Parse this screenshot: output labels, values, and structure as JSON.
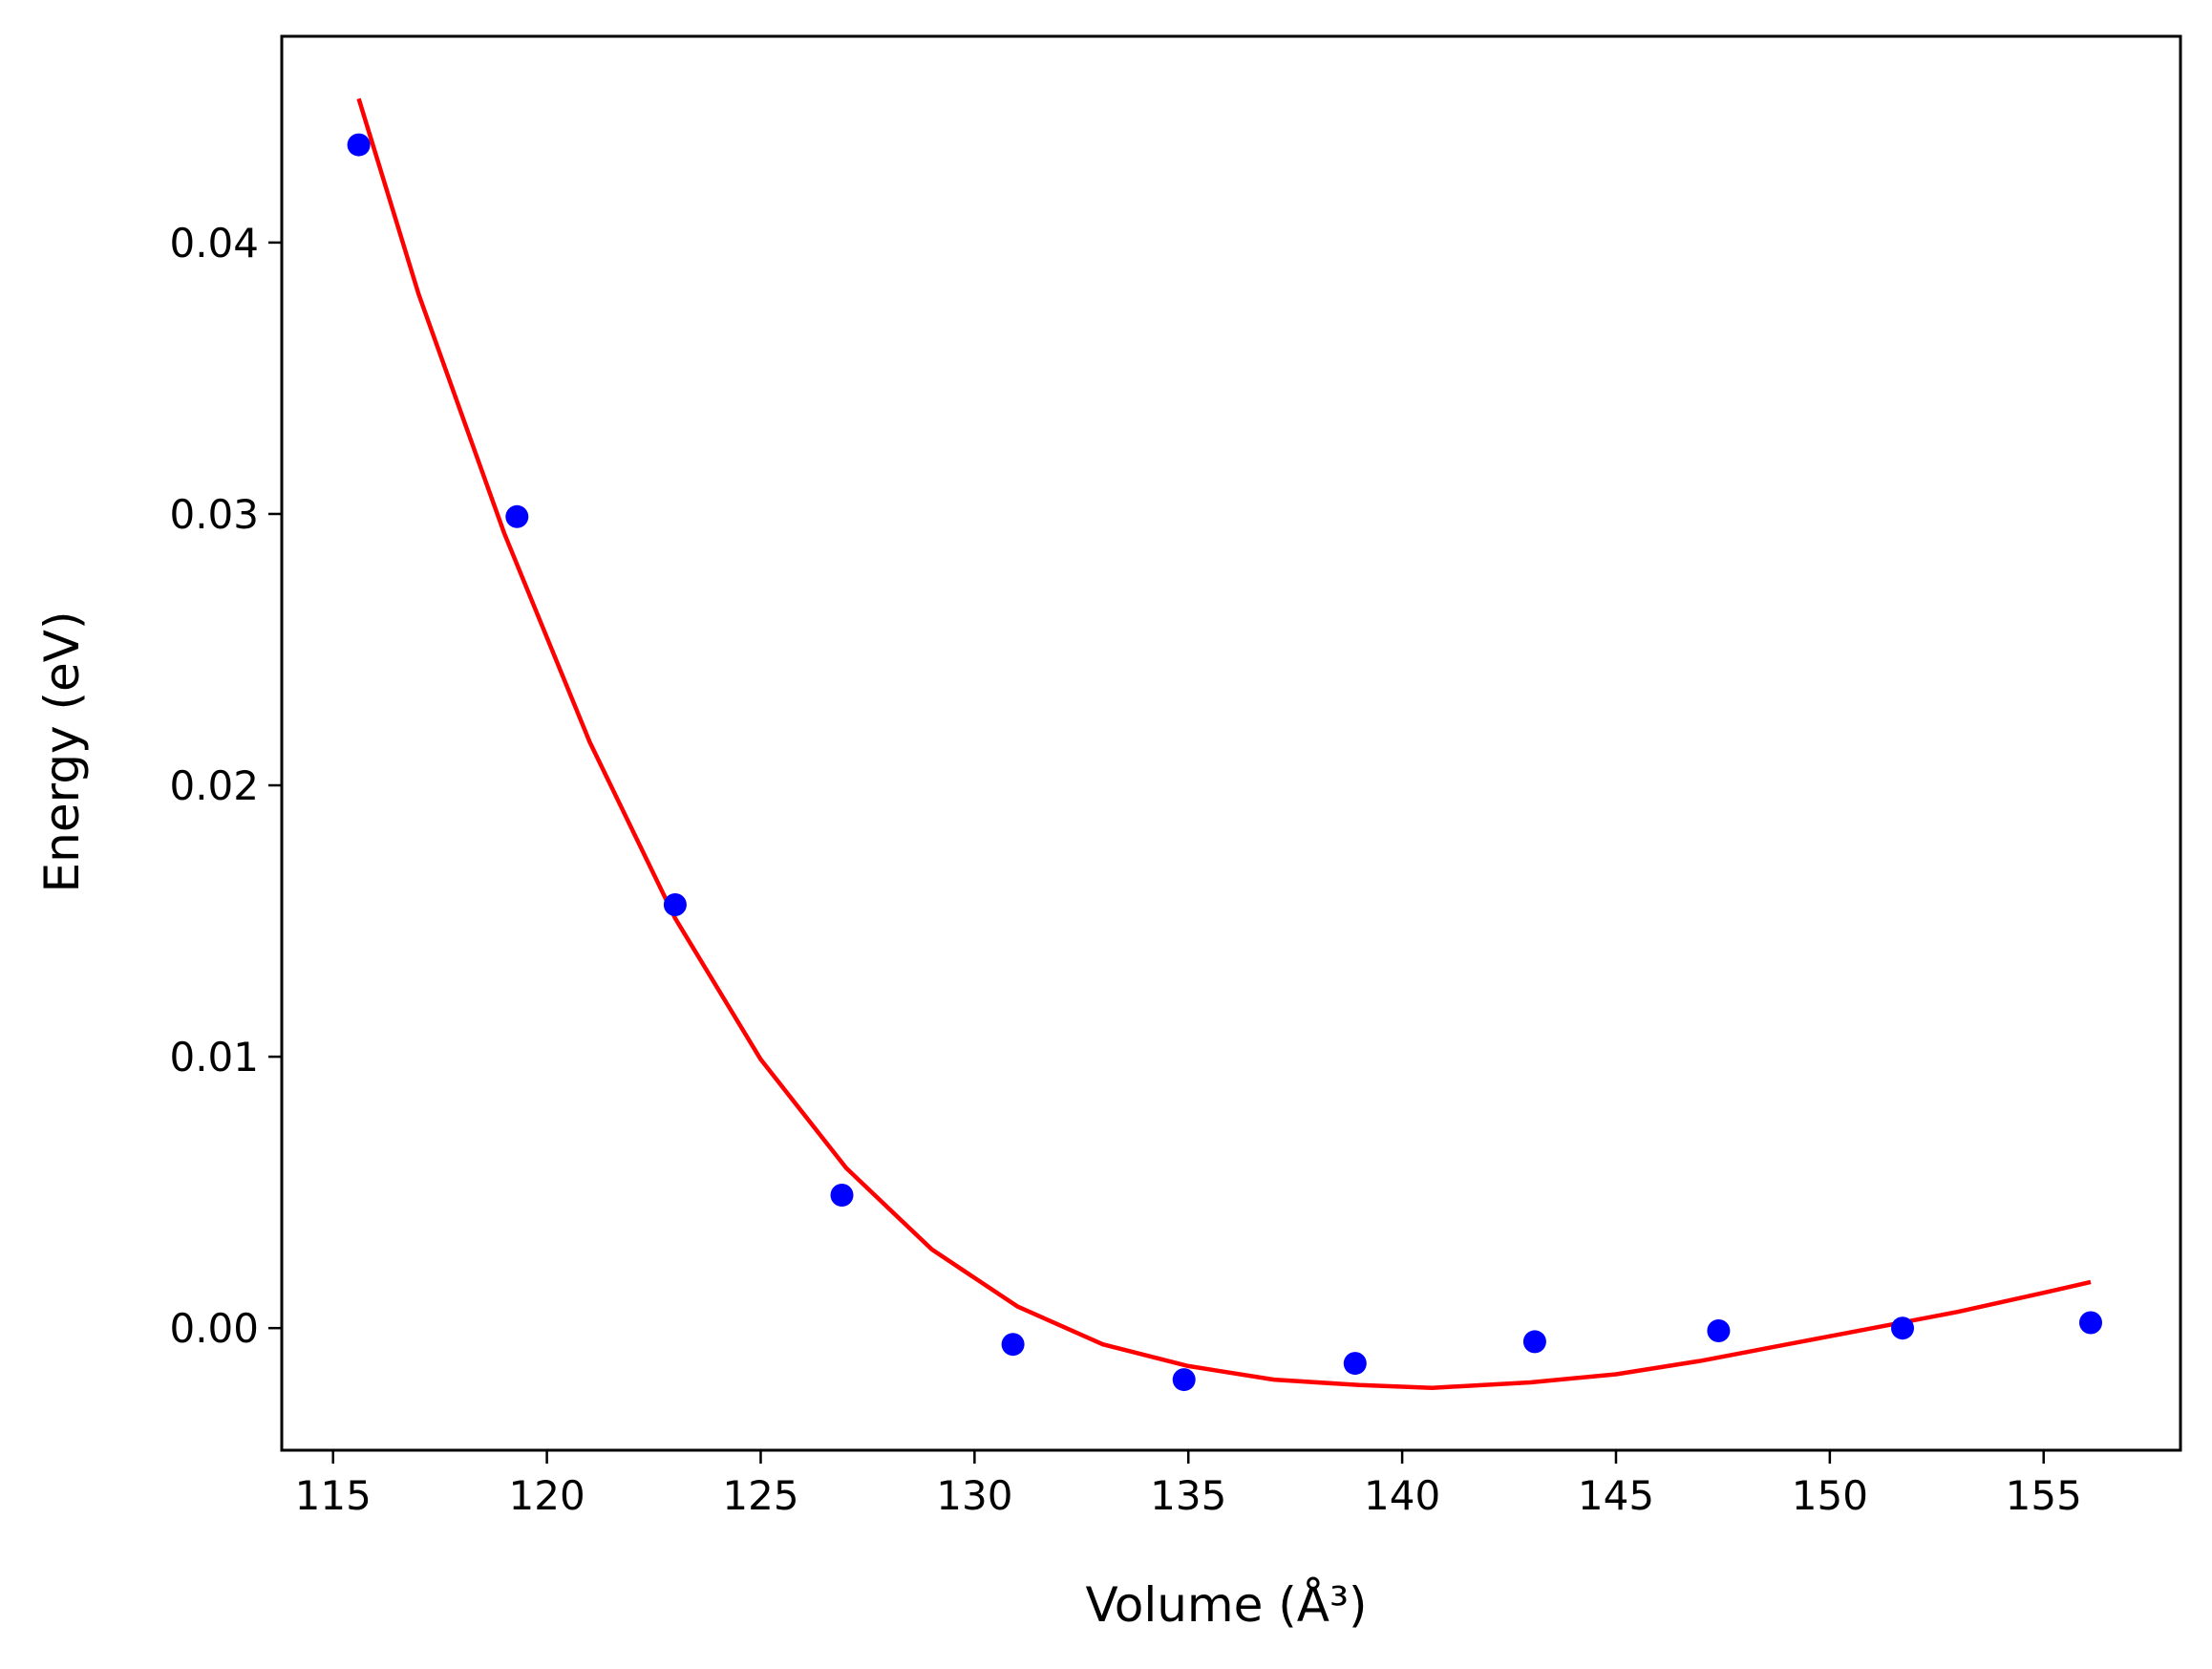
{
  "chart_data": {
    "type": "scatter",
    "title": "",
    "xlabel": "Volume (Å³)",
    "ylabel": "Energy (eV)",
    "xlim": [
      113.8,
      158.2
    ],
    "ylim": [
      -0.0045,
      0.0476
    ],
    "xticks": [
      115,
      120,
      125,
      130,
      135,
      140,
      145,
      150,
      155
    ],
    "xtick_labels": [
      "115",
      "120",
      "125",
      "130",
      "135",
      "140",
      "145",
      "150",
      "155"
    ],
    "yticks": [
      0.0,
      0.01,
      0.02,
      0.03,
      0.04
    ],
    "ytick_labels": [
      "0.00",
      "0.01",
      "0.02",
      "0.03",
      "0.04"
    ],
    "grid": false,
    "series": [
      {
        "kind": "points",
        "color": "#0000ff",
        "x": [
          115.6,
          119.3,
          123.0,
          126.9,
          130.9,
          134.9,
          138.9,
          143.1,
          147.4,
          151.7,
          156.1
        ],
        "y": [
          0.0436,
          0.0299,
          0.0156,
          0.0049,
          -0.0006,
          -0.0019,
          -0.0013,
          -0.0005,
          -0.0001,
          0.0,
          0.0002
        ]
      },
      {
        "kind": "fit-line",
        "color": "#ff0000",
        "x": [
          115.6,
          117.0,
          119.0,
          121.0,
          123.0,
          125.0,
          127.0,
          129.0,
          131.0,
          133.0,
          135.0,
          137.0,
          139.0,
          140.7,
          143.0,
          145.0,
          147.0,
          149.0,
          151.0,
          153.0,
          155.0,
          156.1
        ],
        "y": [
          0.0453,
          0.0381,
          0.0293,
          0.0216,
          0.0151,
          0.0099,
          0.0059,
          0.0029,
          0.0008,
          -0.0006,
          -0.0014,
          -0.0019,
          -0.0021,
          -0.0022,
          -0.002,
          -0.0017,
          -0.0012,
          -0.0006,
          0.0,
          0.0006,
          0.0013,
          0.0017
        ]
      }
    ]
  }
}
